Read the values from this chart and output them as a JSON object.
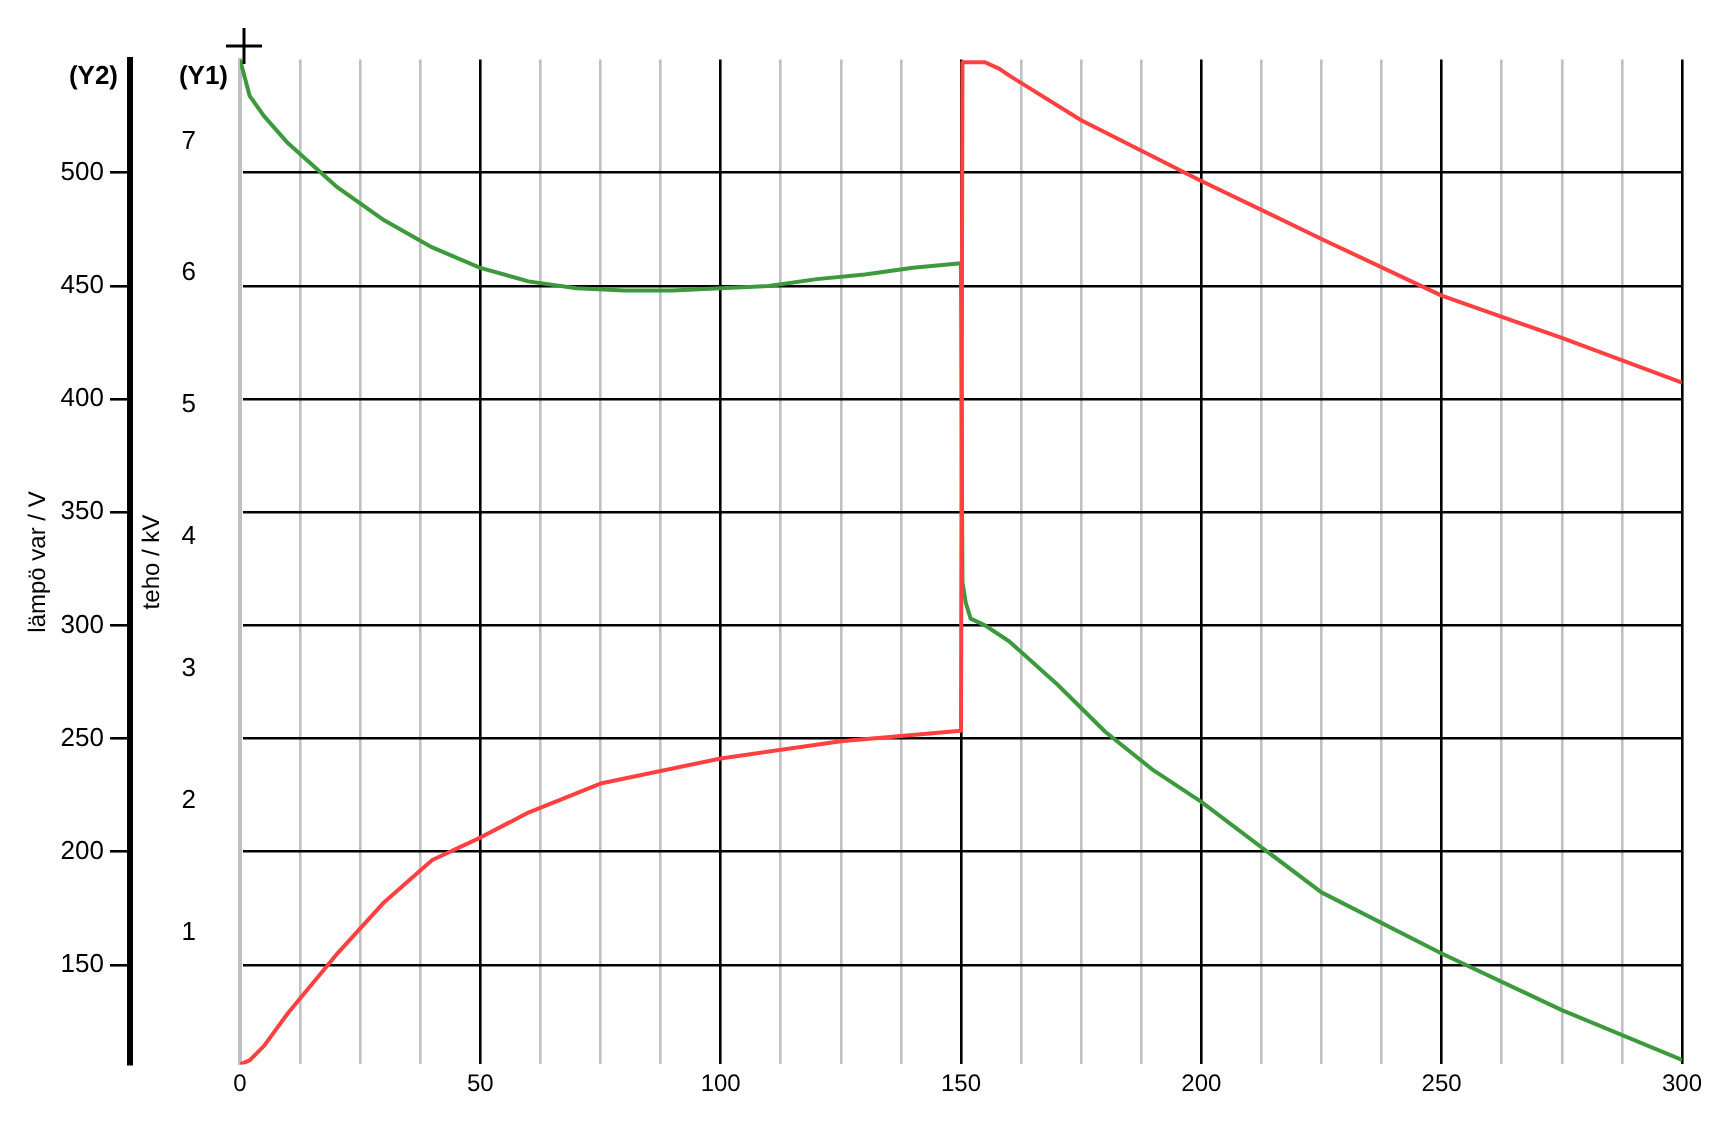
{
  "chart_data": {
    "type": "line",
    "ylabel": "teho / kV",
    "y2label": "lämpö var / V",
    "annotations": [
      "(Y1)",
      "(Y2)"
    ],
    "xlim": [
      0,
      300
    ],
    "xticks": [
      0,
      {
        "value": 12.5,
        "label": null
      },
      {
        "value": 25,
        "label": null
      },
      {
        "value": 37.5,
        "label": null
      },
      50,
      {
        "value": 62.5,
        "label": null
      },
      {
        "value": 75,
        "label": null
      },
      {
        "value": 87.5,
        "label": null
      },
      100,
      {
        "value": 112.5,
        "label": null
      },
      {
        "value": 125,
        "label": null
      },
      {
        "value": 137.5,
        "label": null
      },
      150,
      {
        "value": 162.5,
        "label": null
      },
      {
        "value": 175,
        "label": null
      },
      {
        "value": 187.5,
        "label": null
      },
      200,
      {
        "value": 212.5,
        "label": null
      },
      {
        "value": 225,
        "label": null
      },
      {
        "value": 237.5,
        "label": null
      },
      250,
      {
        "value": 262.5,
        "label": null
      },
      {
        "value": 275,
        "label": null
      },
      {
        "value": 287.5,
        "label": null
      },
      300
    ],
    "ylim": [
      0,
      7.62
    ],
    "yticks": [
      1,
      2,
      3,
      4,
      5,
      6,
      7
    ],
    "y2lim": [
      106,
      550
    ],
    "y2ticks": [
      150,
      200,
      250,
      300,
      350,
      400,
      450,
      500
    ],
    "grid": true,
    "legend": false,
    "marker": "none",
    "line_style": "solid",
    "series": [
      {
        "color": "#ff4040",
        "axis": "y",
        "x": [
          0,
          2,
          5,
          10,
          20,
          30,
          40,
          50,
          60,
          75,
          100,
          125,
          150,
          150.3,
          152,
          155,
          158,
          160,
          175,
          200,
          225,
          250,
          275,
          300
        ],
        "values": [
          0,
          0.03,
          0.14,
          0.39,
          0.83,
          1.23,
          1.55,
          1.72,
          1.91,
          2.13,
          2.32,
          2.45,
          2.53,
          7.6,
          7.6,
          7.6,
          7.55,
          7.5,
          7.16,
          6.7,
          6.26,
          5.83,
          5.51,
          5.17
        ]
      },
      {
        "color": "#3c9a3c",
        "axis": "y2",
        "x": [
          0,
          2,
          5,
          10,
          20,
          30,
          40,
          50,
          60,
          70,
          80,
          90,
          100,
          110,
          120,
          130,
          140,
          150,
          150.3,
          151,
          152,
          155,
          160,
          170,
          180,
          190,
          200,
          225,
          250,
          275,
          300
        ],
        "values": [
          550,
          534,
          525,
          513,
          494,
          479,
          467,
          458,
          452,
          449,
          448,
          448,
          449,
          450,
          453,
          455,
          458,
          460,
          319,
          310,
          303,
          300,
          293,
          274,
          253,
          236,
          222,
          182,
          155,
          130,
          108
        ]
      }
    ]
  }
}
